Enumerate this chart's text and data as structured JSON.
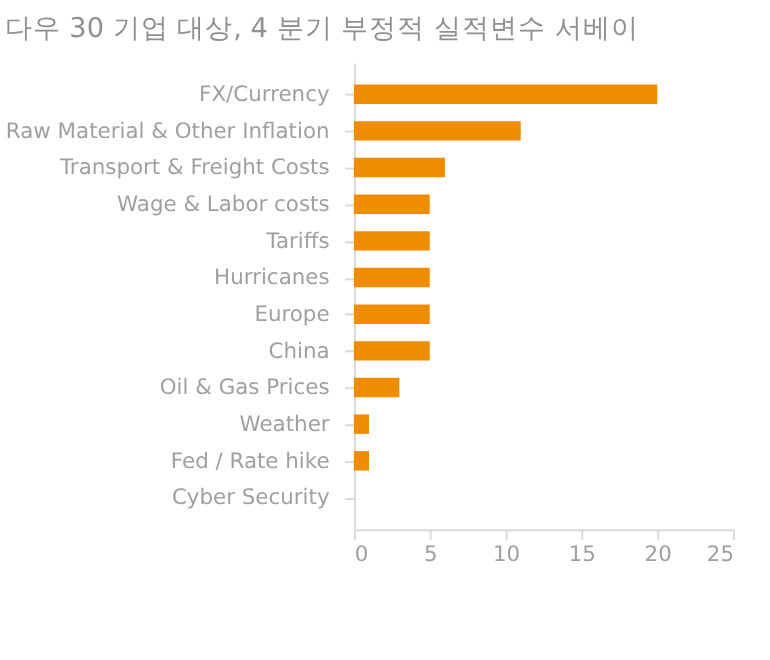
{
  "chart_data": {
    "type": "bar",
    "orientation": "horizontal",
    "title": "다우 30 기업 대상, 4 분기 부정적 실적변수 서베이",
    "categories": [
      "FX/Currency",
      "Raw Material & Other Inflation",
      "Transport & Freight Costs",
      "Wage & Labor costs",
      "Tariffs",
      "Hurricanes",
      "Europe",
      "China",
      "Oil & Gas Prices",
      "Weather",
      "Fed / Rate hike",
      "Cyber Security"
    ],
    "values": [
      20,
      11,
      6,
      5,
      5,
      5,
      5,
      5,
      3,
      1,
      1,
      0
    ],
    "color": "#f08c00",
    "xlim": [
      0,
      25
    ],
    "xticks": [
      0,
      5,
      10,
      15,
      20,
      25
    ],
    "grid": false
  }
}
